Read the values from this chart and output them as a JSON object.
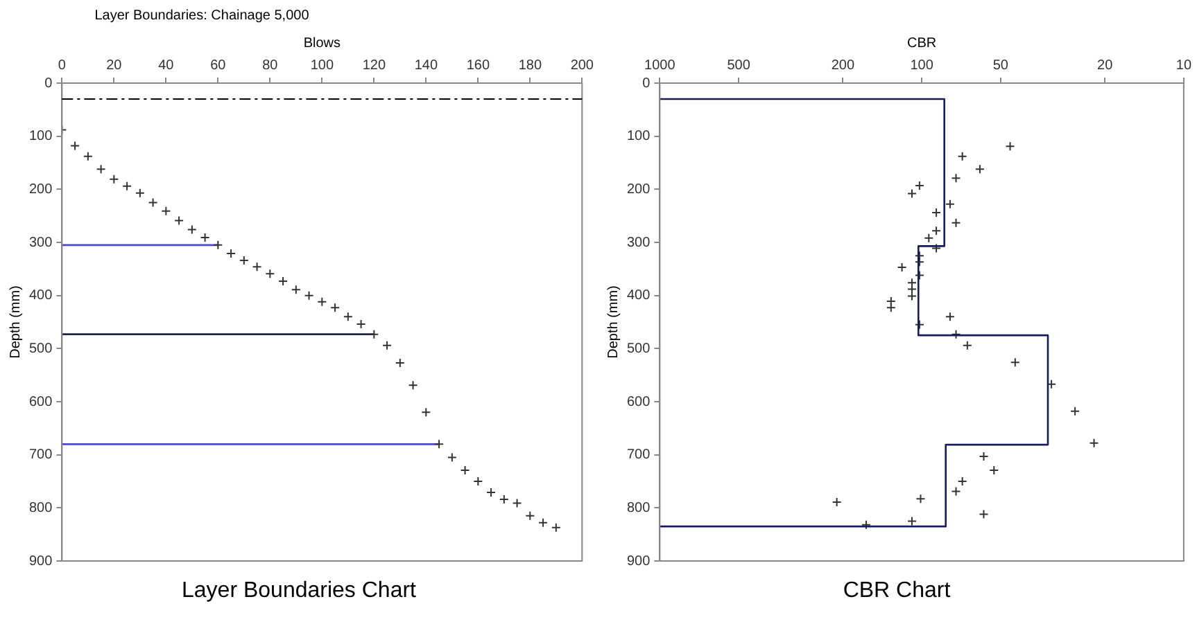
{
  "chart_data": [
    {
      "type": "scatter",
      "title": "Layer Boundaries: Chainage 5,000",
      "xlabel": "Blows",
      "ylabel": "Depth (mm)",
      "xlim": [
        0,
        200
      ],
      "xticks": [
        0,
        20,
        40,
        60,
        80,
        100,
        120,
        140,
        160,
        180,
        200
      ],
      "ylim": [
        900,
        0
      ],
      "yticks": [
        0,
        100,
        200,
        300,
        400,
        500,
        600,
        700,
        800,
        900
      ],
      "grid": false,
      "legend": false,
      "annotations": [
        "Layer Boundaries Chart"
      ],
      "ref_lines": [
        {
          "axis": "y",
          "value": 30,
          "color": "#000000",
          "line_style": "dashed"
        }
      ],
      "series": [
        {
          "marker": "cross",
          "color": "#333333",
          "x": [
            0,
            5,
            10,
            15,
            20,
            25,
            30,
            35,
            40,
            45,
            50,
            55,
            60,
            65,
            70,
            75,
            80,
            85,
            90,
            95,
            100,
            105,
            110,
            115,
            120,
            125,
            130,
            135,
            140,
            145,
            150,
            155,
            160,
            165,
            170,
            175,
            180,
            185,
            190
          ],
          "values": [
            88,
            118,
            138,
            162,
            181,
            194,
            207,
            225,
            241,
            259,
            276,
            291,
            305,
            321,
            334,
            346,
            359,
            373,
            389,
            400,
            412,
            423,
            440,
            454,
            473,
            494,
            527,
            569,
            620,
            680,
            705,
            729,
            750,
            771,
            784,
            791,
            815,
            828,
            837
          ]
        },
        {
          "type": "line",
          "marker": "none",
          "color": "#4a4ad0",
          "x": [
            0,
            60
          ],
          "values": [
            305,
            305
          ]
        },
        {
          "type": "line",
          "marker": "none",
          "color": "#22224a",
          "x": [
            0,
            120
          ],
          "values": [
            473,
            473
          ]
        },
        {
          "type": "line",
          "marker": "none",
          "color": "#4a4ad0",
          "x": [
            0,
            145
          ],
          "values": [
            680,
            680
          ]
        }
      ]
    },
    {
      "type": "scatter",
      "xlabel": "CBR",
      "ylabel": "Depth (mm)",
      "log": "x",
      "xlim": [
        1000,
        10
      ],
      "xticks": [
        1000,
        500,
        200,
        100,
        50,
        20,
        10
      ],
      "ylim": [
        900,
        0
      ],
      "yticks": [
        0,
        100,
        200,
        300,
        400,
        500,
        600,
        700,
        800,
        900
      ],
      "grid": false,
      "legend": false,
      "annotations": [
        "CBR Chart"
      ],
      "series": [
        {
          "type": "line",
          "marker": "none",
          "color": "#1a1a5e",
          "x": [
            1000,
            82,
            82,
            103,
            103,
            33,
            33,
            81,
            81,
            1000
          ],
          "values": [
            30,
            30,
            307,
            307,
            475,
            475,
            681,
            681,
            835,
            835
          ]
        },
        {
          "marker": "cross",
          "color": "#333333",
          "x": [
            46,
            70,
            60,
            74,
            102,
            109,
            78,
            88,
            74,
            88,
            94,
            88,
            102,
            102,
            119,
            102,
            109,
            109,
            109,
            131,
            131,
            78,
            102,
            74,
            67,
            44,
            32,
            26,
            22,
            58,
            53,
            70,
            74,
            101,
            211,
            58,
            109,
            163
          ],
          "values": [
            119,
            138,
            162,
            179,
            193,
            208,
            228,
            244,
            263,
            278,
            292,
            311,
            325,
            337,
            347,
            362,
            376,
            388,
            401,
            411,
            423,
            440,
            455,
            473,
            494,
            526,
            567,
            618,
            678,
            703,
            729,
            750,
            769,
            783,
            789,
            812,
            825,
            832
          ]
        }
      ]
    }
  ]
}
